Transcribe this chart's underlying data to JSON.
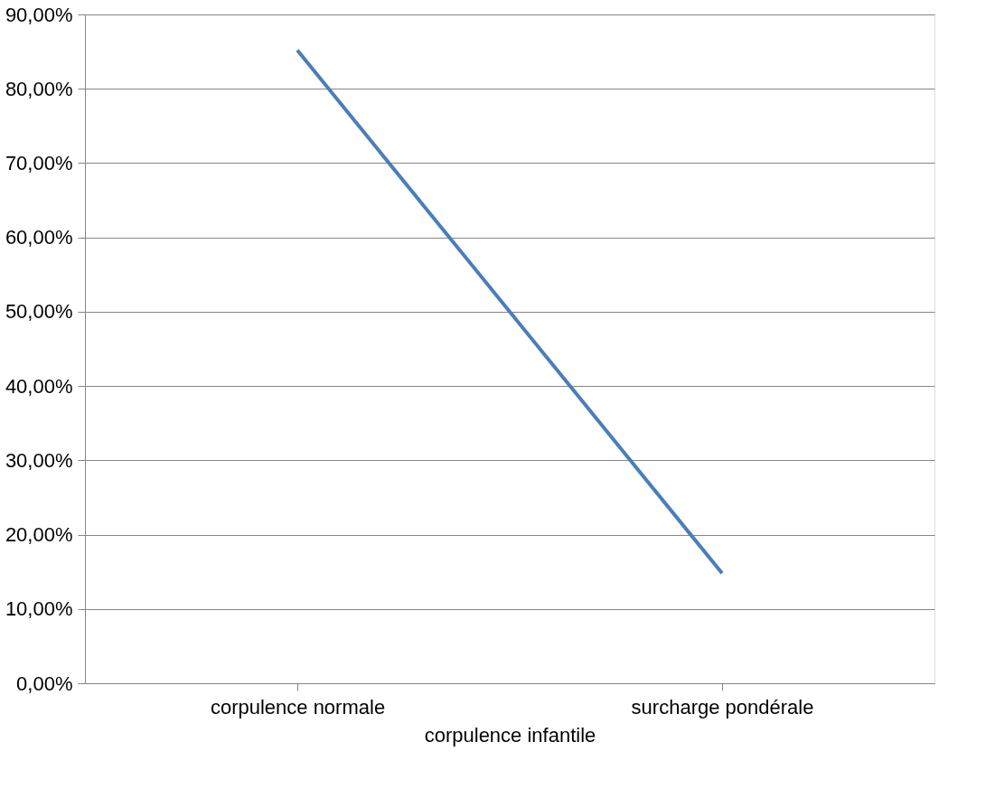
{
  "chart_data": {
    "type": "line",
    "xlabel": "corpulence infantile",
    "categories": [
      "corpulence normale",
      "surcharge pondérale"
    ],
    "series": [
      {
        "color": "#4a7ebb",
        "values": [
          85.2,
          14.8
        ]
      }
    ],
    "ylim": [
      0,
      90
    ],
    "yticks": [
      {
        "value": 0,
        "label": "0,00%"
      },
      {
        "value": 10,
        "label": "10,00%"
      },
      {
        "value": 20,
        "label": "20,00%"
      },
      {
        "value": 30,
        "label": "30,00%"
      },
      {
        "value": 40,
        "label": "40,00%"
      },
      {
        "value": 50,
        "label": "50,00%"
      },
      {
        "value": 60,
        "label": "60,00%"
      },
      {
        "value": 70,
        "label": "70,00%"
      },
      {
        "value": 80,
        "label": "80,00%"
      },
      {
        "value": 90,
        "label": "90,00%"
      }
    ],
    "grid": "y",
    "line_style": "solid"
  }
}
